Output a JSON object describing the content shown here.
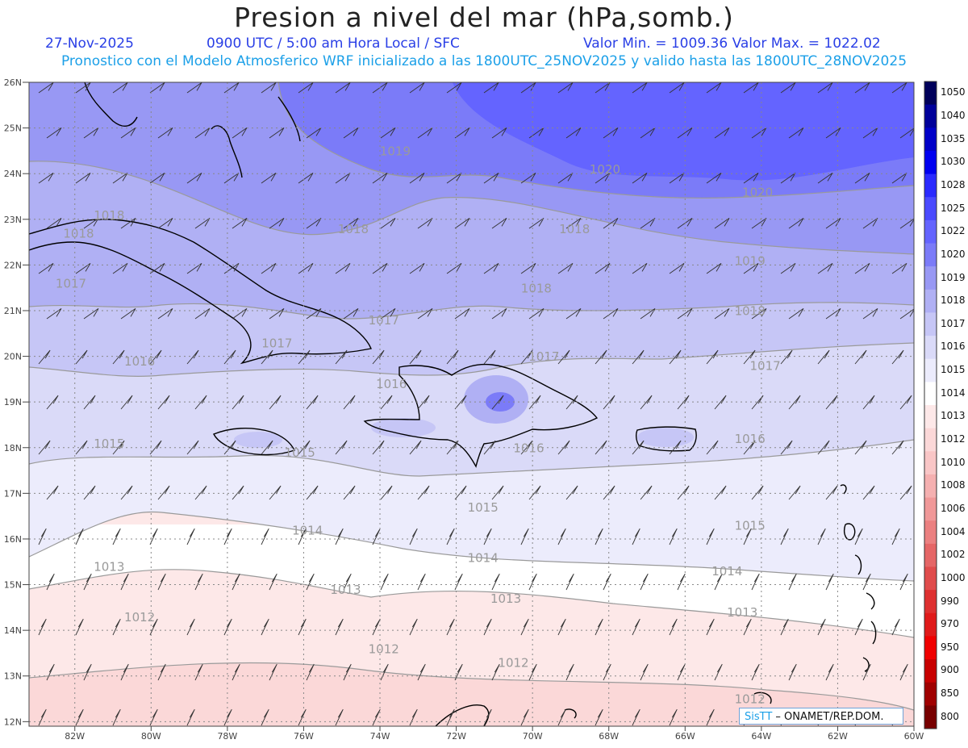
{
  "header": {
    "title": "Presion a nivel del mar (hPa,somb.)",
    "date": "27-Nov-2025",
    "time_info": "0900 UTC / 5:00 am Hora Local / SFC",
    "value_range": "Valor Min. = 1009.36  Valor Max. = 1022.02",
    "model_info": "Pronostico con el Modelo Atmosferico WRF inicializado a las 1800UTC_25NOV2025 y valido hasta las  1800UTC_28NOV2025"
  },
  "axes": {
    "lat_labels": [
      "26N",
      "25N",
      "24N",
      "23N",
      "22N",
      "21N",
      "20N",
      "19N",
      "18N",
      "17N",
      "16N",
      "15N",
      "14N",
      "13N",
      "12N"
    ],
    "lon_labels": [
      "82W",
      "80W",
      "78W",
      "76W",
      "74W",
      "72W",
      "70W",
      "68W",
      "66W",
      "64W",
      "62W",
      "60W"
    ]
  },
  "colorbar": {
    "levels": [
      "1050",
      "1040",
      "1035",
      "1030",
      "1028",
      "1025",
      "1022",
      "1020",
      "1019",
      "1018",
      "1017",
      "1016",
      "1015",
      "1014",
      "1013",
      "1012",
      "1010",
      "1008",
      "1006",
      "1004",
      "1002",
      "1000",
      "990",
      "970",
      "950",
      "900",
      "850",
      "800"
    ],
    "colors": [
      "#00005a",
      "#00009a",
      "#0000c8",
      "#0000f0",
      "#2a2aff",
      "#4a4aff",
      "#6464ff",
      "#7b7bf8",
      "#9898f4",
      "#b0b0f4",
      "#c6c6f6",
      "#dadaf8",
      "#ececfc",
      "#ffffff",
      "#fde8e8",
      "#fbd8d8",
      "#f9c6c6",
      "#f5b0b0",
      "#f09898",
      "#eb8080",
      "#e56666",
      "#e04c4c",
      "#de3030",
      "#e01a1a",
      "#f00000",
      "#c80000",
      "#a00000",
      "#780000"
    ]
  },
  "contour_labels": [
    {
      "text": "1019",
      "lon": -73.6,
      "lat": 24.4
    },
    {
      "text": "1020",
      "lon": -68.1,
      "lat": 24.0
    },
    {
      "text": "1020",
      "lon": -64.1,
      "lat": 23.5
    },
    {
      "text": "1018",
      "lon": -81.1,
      "lat": 23.0
    },
    {
      "text": "1018",
      "lon": -81.9,
      "lat": 22.6
    },
    {
      "text": "1018",
      "lon": -74.7,
      "lat": 22.7
    },
    {
      "text": "1018",
      "lon": -68.9,
      "lat": 22.7
    },
    {
      "text": "1019",
      "lon": -64.3,
      "lat": 22.0
    },
    {
      "text": "1017",
      "lon": -82.1,
      "lat": 21.5
    },
    {
      "text": "1018",
      "lon": -69.9,
      "lat": 21.4
    },
    {
      "text": "1018",
      "lon": -64.3,
      "lat": 20.9
    },
    {
      "text": "1017",
      "lon": -73.9,
      "lat": 20.7
    },
    {
      "text": "1017",
      "lon": -76.7,
      "lat": 20.2
    },
    {
      "text": "1016",
      "lon": -80.3,
      "lat": 19.8
    },
    {
      "text": "1017",
      "lon": -69.7,
      "lat": 19.9
    },
    {
      "text": "1017",
      "lon": -63.9,
      "lat": 19.7
    },
    {
      "text": "1016",
      "lon": -73.7,
      "lat": 19.3
    },
    {
      "text": "1015",
      "lon": -81.1,
      "lat": 18.0
    },
    {
      "text": "1015",
      "lon": -76.1,
      "lat": 17.8
    },
    {
      "text": "1016",
      "lon": -70.1,
      "lat": 17.9
    },
    {
      "text": "1016",
      "lon": -64.3,
      "lat": 18.1
    },
    {
      "text": "1015",
      "lon": -71.3,
      "lat": 16.6
    },
    {
      "text": "1014",
      "lon": -75.9,
      "lat": 16.1
    },
    {
      "text": "1015",
      "lon": -64.3,
      "lat": 16.2
    },
    {
      "text": "1014",
      "lon": -71.3,
      "lat": 15.5
    },
    {
      "text": "1013",
      "lon": -81.1,
      "lat": 15.3
    },
    {
      "text": "1014",
      "lon": -64.9,
      "lat": 15.2
    },
    {
      "text": "1013",
      "lon": -74.9,
      "lat": 14.8
    },
    {
      "text": "1013",
      "lon": -70.7,
      "lat": 14.6
    },
    {
      "text": "1013",
      "lon": -64.5,
      "lat": 14.3
    },
    {
      "text": "1012",
      "lon": -80.3,
      "lat": 14.2
    },
    {
      "text": "1012",
      "lon": -73.9,
      "lat": 13.5
    },
    {
      "text": "1012",
      "lon": -70.5,
      "lat": 13.2
    },
    {
      "text": "1012",
      "lon": -64.3,
      "lat": 12.4
    }
  ],
  "credit": {
    "brand": "SisTT",
    "text": " – ONAMET/REP.DOM."
  }
}
